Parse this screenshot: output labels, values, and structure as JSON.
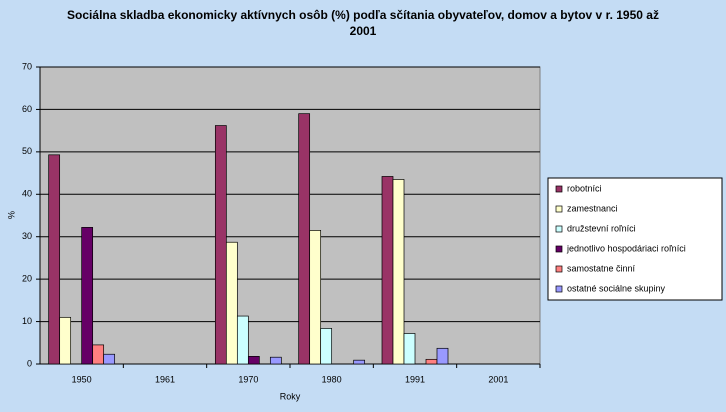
{
  "chart_data": {
    "type": "bar",
    "title": "Sociálna skladba ekonomicky aktívnych osôb (%) podľa sčítania obyvateľov, domov a bytov v r. 1950 až 2001",
    "x_label": "Roky",
    "y_label": "%",
    "categories": [
      "1950",
      "1961",
      "1970",
      "1980",
      "1991",
      "2001"
    ],
    "series": [
      {
        "name": "robotníci",
        "color": "#993366",
        "values": [
          49.3,
          null,
          56.2,
          59,
          44.2,
          null
        ]
      },
      {
        "name": "zamestnanci",
        "color": "#ffffcc",
        "values": [
          11,
          null,
          28.7,
          31.5,
          43.5,
          null
        ]
      },
      {
        "name": "družstevní roľníci",
        "color": "#ccffff",
        "values": [
          null,
          null,
          11.3,
          8.4,
          7.2,
          null
        ]
      },
      {
        "name": "jednotlivo hospodáriaci roľníci",
        "color": "#660066",
        "values": [
          32.2,
          null,
          1.8,
          null,
          null,
          null
        ]
      },
      {
        "name": "samostatne činní",
        "color": "#ff8080",
        "values": [
          4.5,
          null,
          null,
          null,
          1.1,
          null
        ]
      },
      {
        "name": "ostatné sociálne skupiny",
        "color": "#9999ff",
        "values": [
          2.3,
          null,
          1.6,
          0.9,
          3.7,
          null
        ]
      }
    ],
    "ylim": [
      0,
      70
    ],
    "yticks": [
      0,
      10,
      20,
      30,
      40,
      50,
      60,
      70
    ],
    "grid": true,
    "legend": "right"
  }
}
